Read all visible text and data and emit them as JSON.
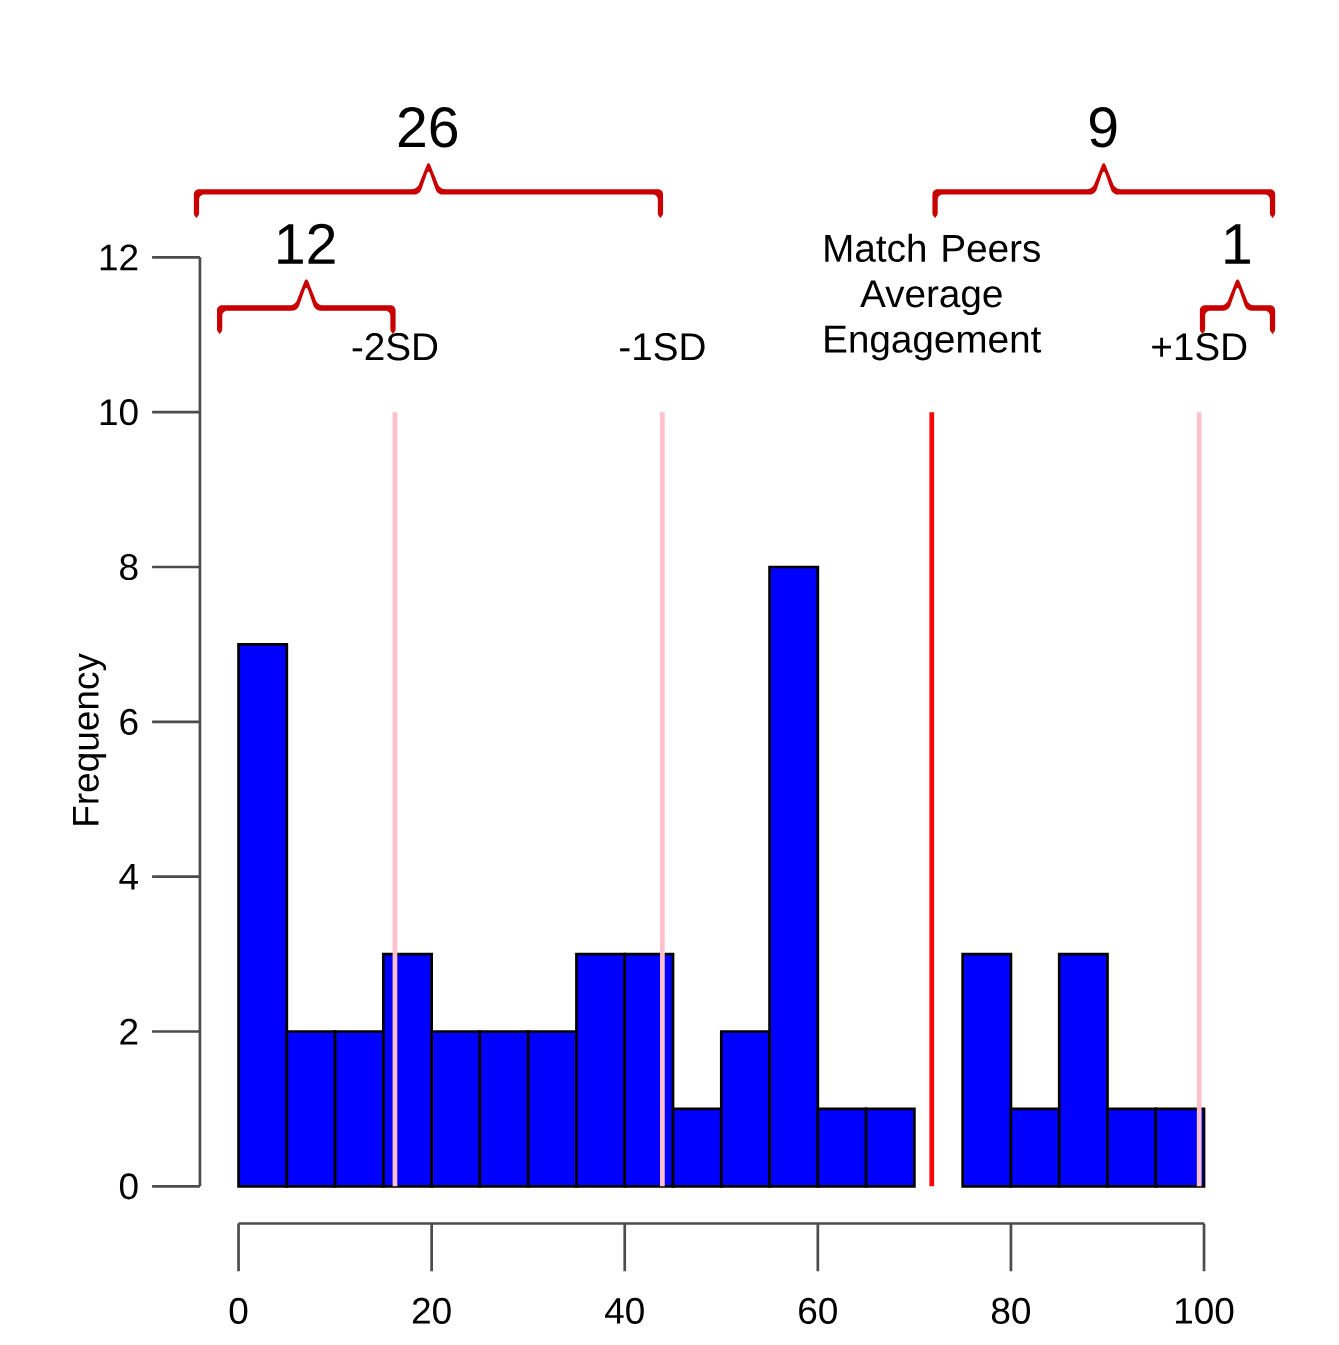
{
  "chart_data": {
    "type": "histogram",
    "ylabel": "Frequency",
    "bins": [
      0,
      5,
      10,
      15,
      20,
      25,
      30,
      35,
      40,
      45,
      50,
      55,
      60,
      65,
      70,
      75,
      80,
      85,
      90,
      95,
      100
    ],
    "values": [
      7,
      2,
      2,
      3,
      2,
      2,
      2,
      3,
      3,
      1,
      2,
      8,
      1,
      1,
      0,
      3,
      1,
      3,
      1,
      1
    ],
    "color": "#0000ff",
    "xlim": [
      0,
      100
    ],
    "ylim": [
      0,
      12
    ],
    "xticks": [
      0,
      20,
      40,
      60,
      80,
      100
    ],
    "yticks": [
      0,
      2,
      4,
      6,
      8,
      10,
      12
    ],
    "grid": false,
    "ref_lines": [
      {
        "axis": "x",
        "value": 16.2,
        "label": "-2SD",
        "color": "#ffc0cb"
      },
      {
        "axis": "x",
        "value": 43.9,
        "label": "-1SD",
        "color": "#ffc0cb"
      },
      {
        "axis": "x",
        "value": 71.8,
        "label": "Match Peers Average Engagement",
        "color": "#ff0000"
      },
      {
        "axis": "x",
        "value": 99.5,
        "label": "+1SD",
        "color": "#ffc0cb"
      }
    ],
    "annotations": [
      "26",
      "12",
      "9",
      "1"
    ]
  }
}
